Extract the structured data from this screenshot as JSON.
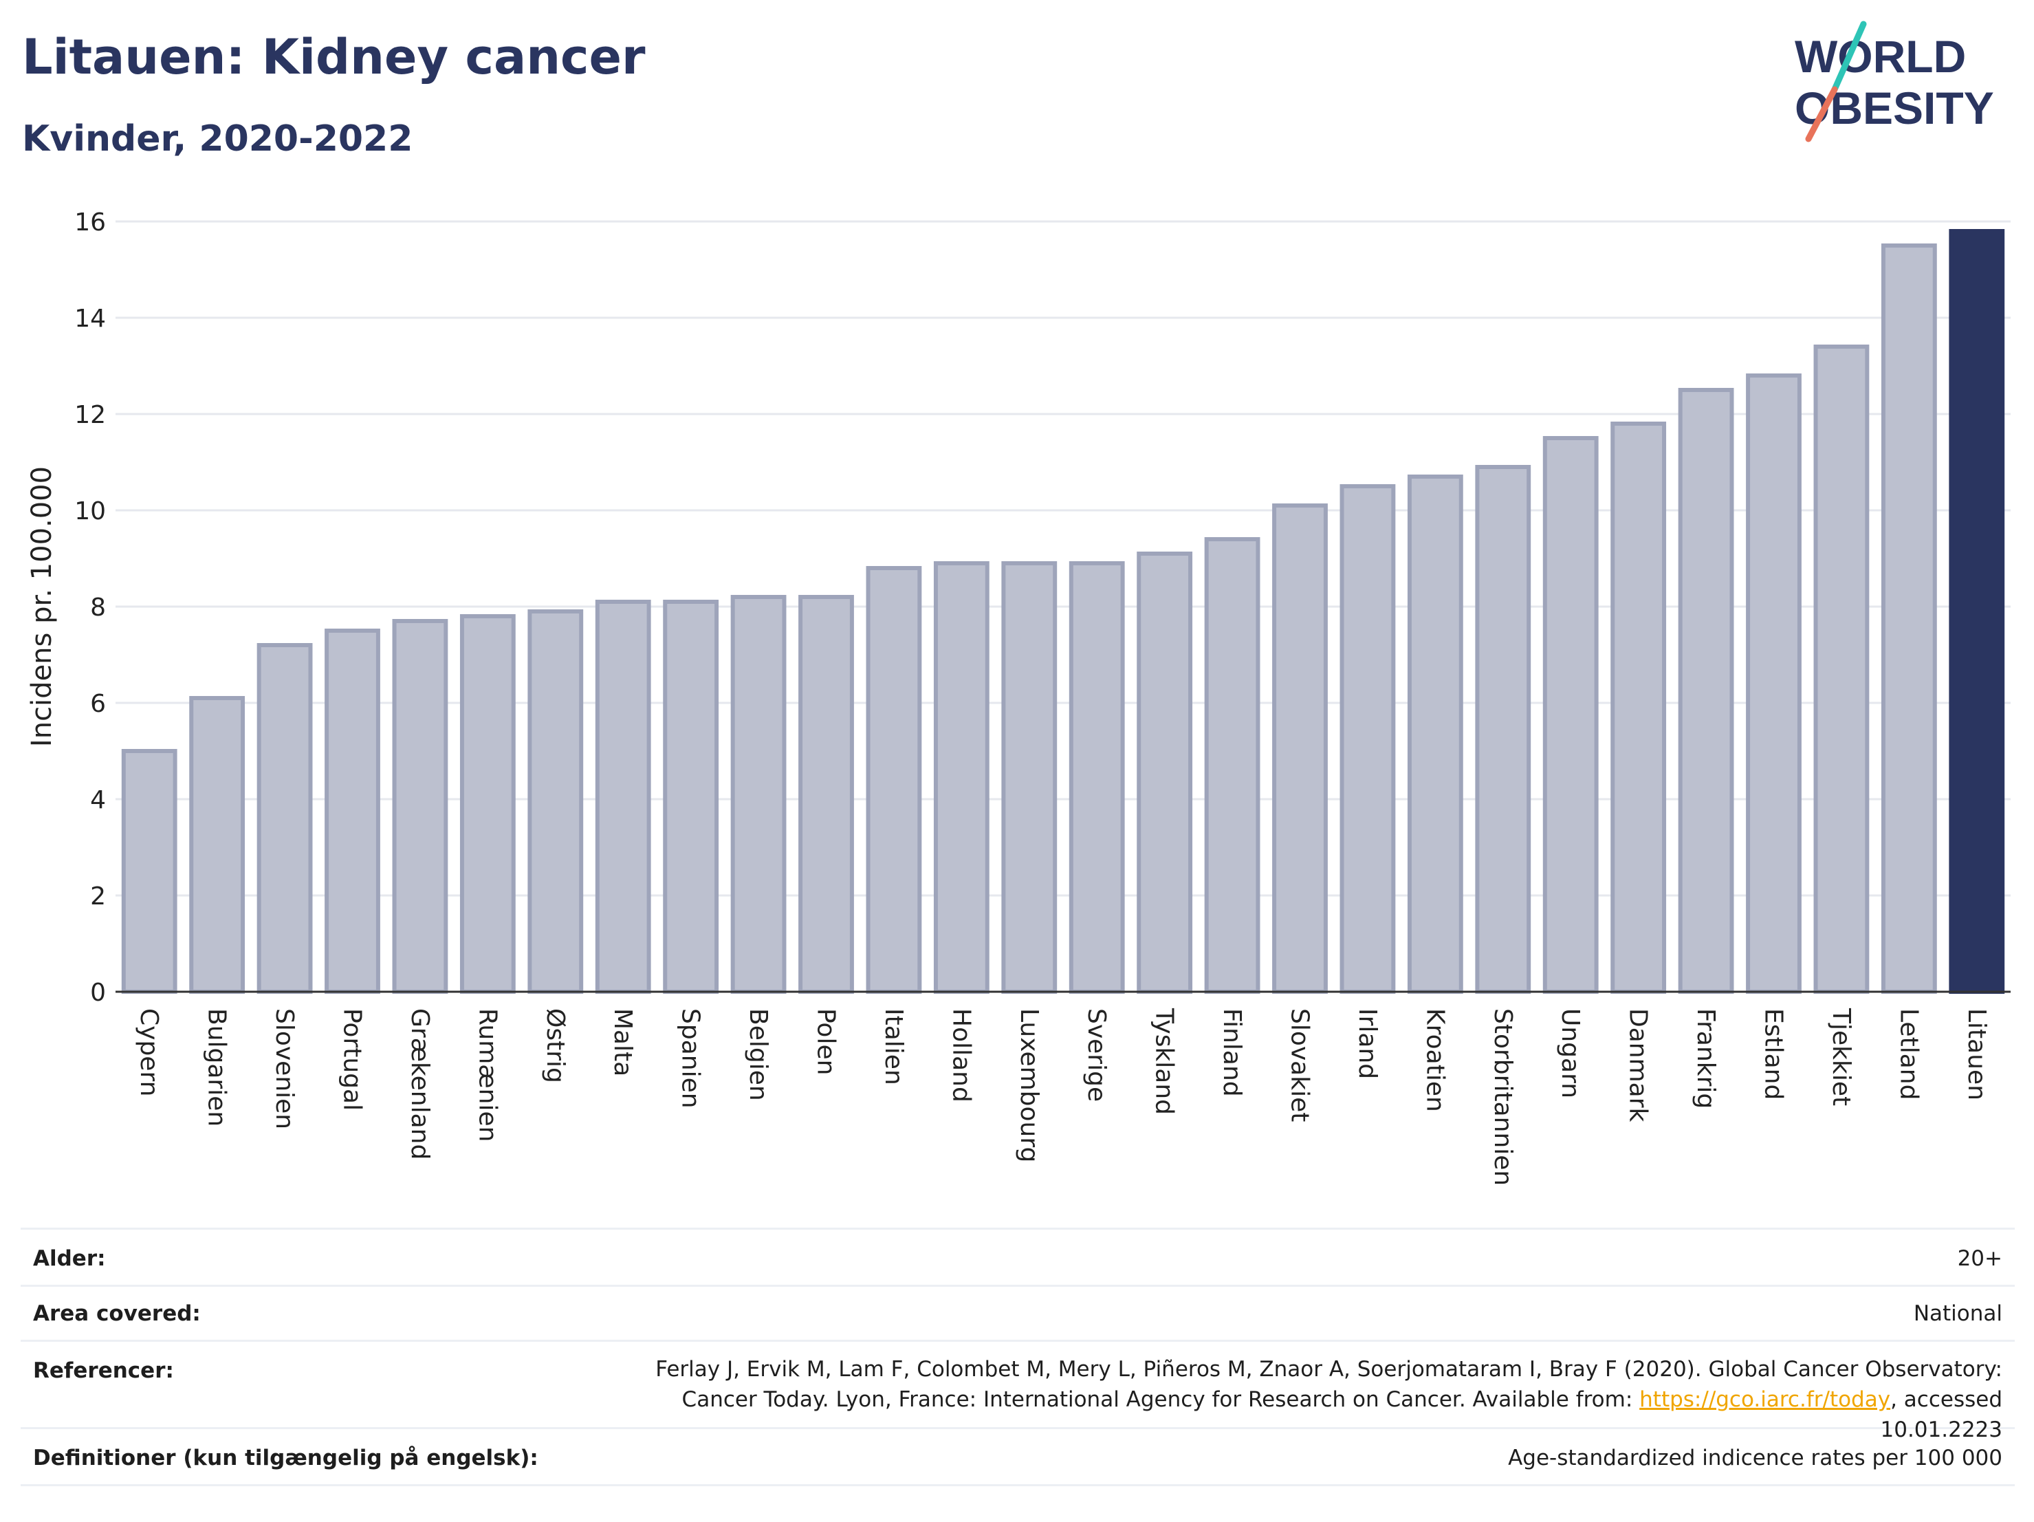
{
  "header": {
    "title": "Litauen: Kidney cancer",
    "subtitle": "Kvinder, 2020-2022"
  },
  "logo": {
    "line1": "WORLD",
    "line2": "OBESITY",
    "accent_teal": "#2ec4b6",
    "accent_coral": "#e8735a"
  },
  "colors": {
    "bar": "#bcc0cf",
    "bar_stroke": "#9ea4ba",
    "highlight": "#2a3560",
    "grid": "#e6e8ee"
  },
  "chart_data": {
    "type": "bar",
    "ylabel": "Incidens pr. 100.000",
    "ylim": [
      0,
      16
    ],
    "yticks": [
      0,
      2,
      4,
      6,
      8,
      10,
      12,
      14,
      16
    ],
    "categories": [
      "Cypern",
      "Bulgarien",
      "Slovenien",
      "Portugal",
      "Grækenland",
      "Rumænien",
      "Østrig",
      "Malta",
      "Spanien",
      "Belgien",
      "Polen",
      "Italien",
      "Holland",
      "Luxembourg",
      "Sverige",
      "Tyskland",
      "Finland",
      "Slovakiet",
      "Irland",
      "Kroatien",
      "Storbritannien",
      "Ungarn",
      "Danmark",
      "Frankrig",
      "Estland",
      "Tjekkiet",
      "Letland",
      "Litauen"
    ],
    "values": [
      5.0,
      6.1,
      7.2,
      7.5,
      7.7,
      7.8,
      7.9,
      8.1,
      8.1,
      8.2,
      8.2,
      8.8,
      8.9,
      8.9,
      8.9,
      9.1,
      9.4,
      10.1,
      10.5,
      10.7,
      10.9,
      11.5,
      11.8,
      12.5,
      12.8,
      13.4,
      15.5,
      15.8
    ],
    "highlight": "Litauen",
    "grid": true
  },
  "info": {
    "age_label": "Alder:",
    "age_value": "20+",
    "area_label": "Area covered:",
    "area_value": "National",
    "ref_label": "Referencer:",
    "ref_text_1": "Ferlay J, Ervik M, Lam F, Colombet M, Mery L, Piñeros M, Znaor A, Soerjomataram I, Bray F (2020). Global Cancer Observatory: Cancer Today. Lyon, France: International Agency for Research on Cancer. Available from: ",
    "ref_link": "https://gco.iarc.fr/today",
    "ref_text_2": ", accessed 10.01.2223",
    "def_label": "Definitioner (kun tilgængelig på engelsk):",
    "def_value": "Age-standardized indicence rates per 100 000"
  }
}
